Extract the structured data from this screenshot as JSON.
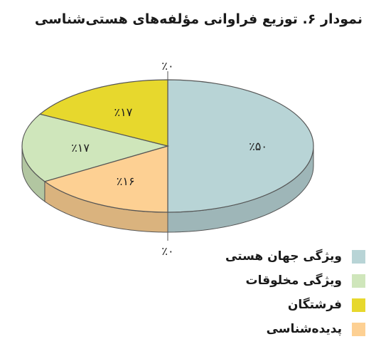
{
  "chart_data": {
    "type": "pie",
    "title": "نمودار ۶. توزیع فراوانی مؤلفه‌های هستی‌شناسی",
    "style": "3d",
    "slices": [
      {
        "label": "ویژگی جهان هستی",
        "value": 50,
        "display": "٪۵۰",
        "color": "#b8d4d6"
      },
      {
        "label": "پدیده‌شناسی",
        "value": 16,
        "display": "٪۱۶",
        "color": "#fdd093"
      },
      {
        "label": "ویژگی مخلوقات",
        "value": 17,
        "display": "٪۱۷",
        "color": "#cfe6bb"
      },
      {
        "label": "فرشتگان",
        "value": 17,
        "display": "٪۱۷",
        "color": "#e7d82d"
      }
    ],
    "zero_labels": [
      "٪۰",
      "٪۰"
    ],
    "legend": [
      {
        "label": "ویژگی جهان هستی",
        "color": "#b8d4d6"
      },
      {
        "label": "ویژگی مخلوقات",
        "color": "#cfe6bb"
      },
      {
        "label": "فرشتگان",
        "color": "#e7d82d"
      },
      {
        "label": "پدیده‌شناسی",
        "color": "#fdd093"
      }
    ],
    "legend_position": "bottom-right"
  }
}
